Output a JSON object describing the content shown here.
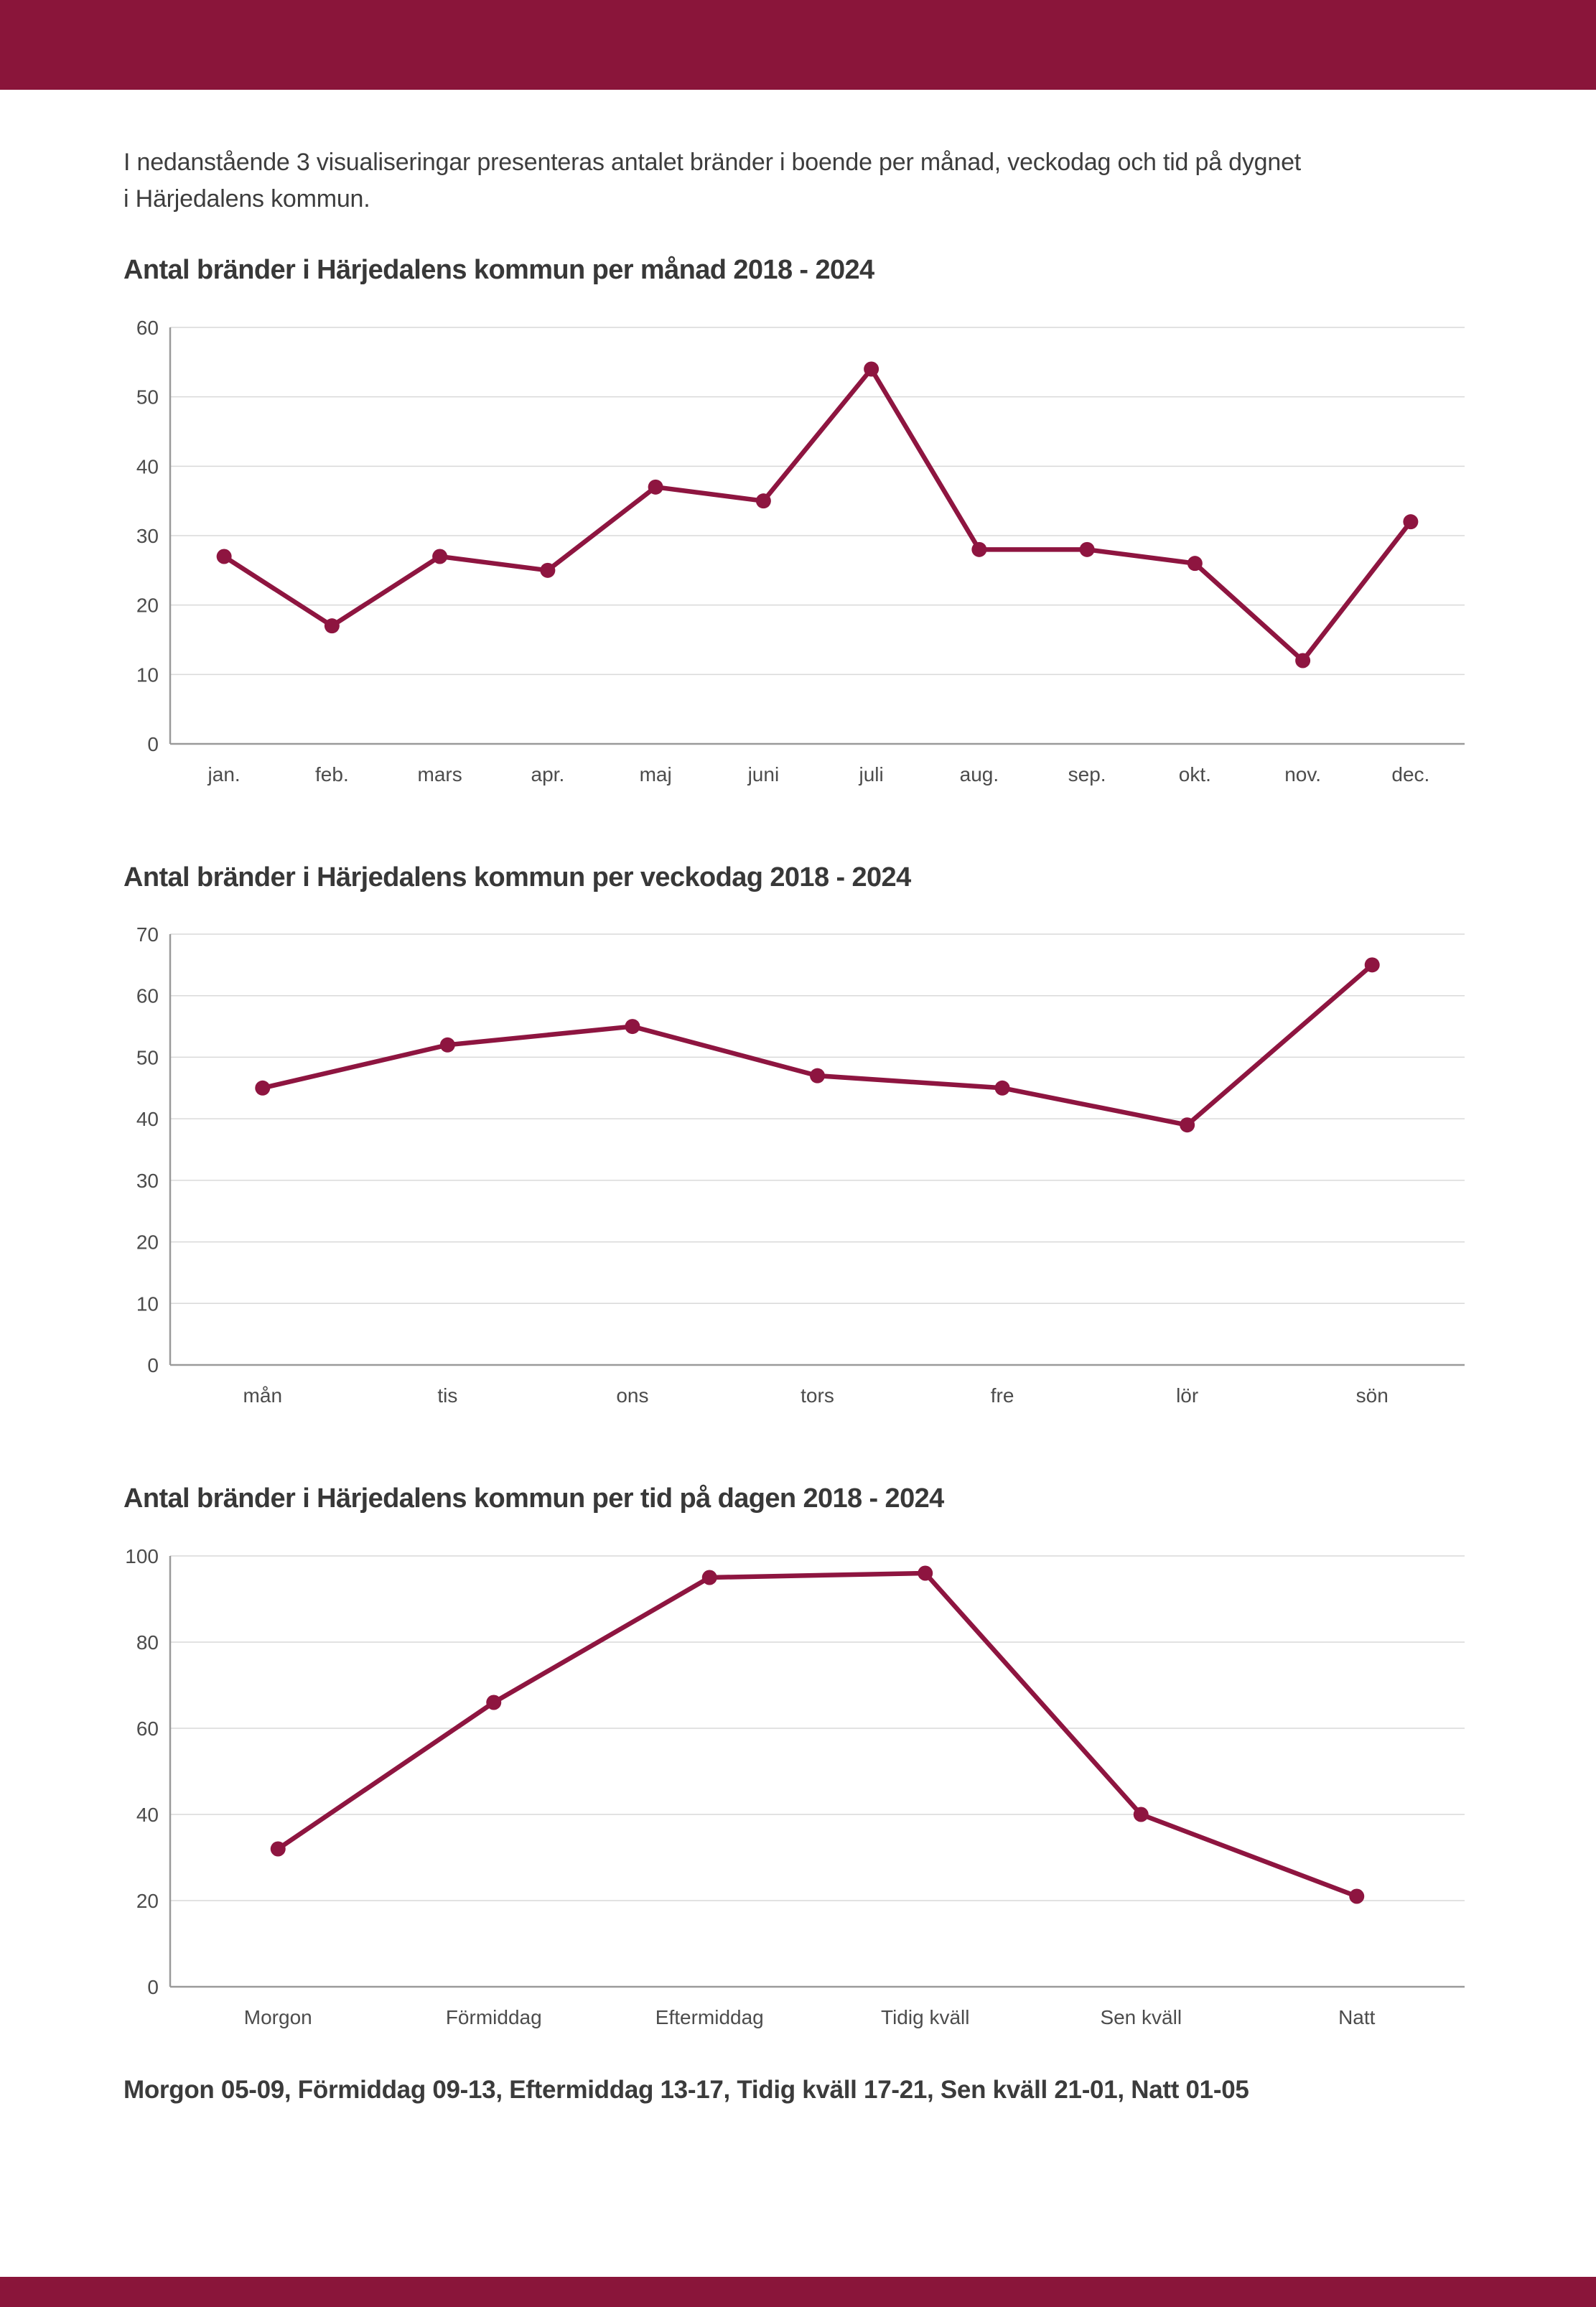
{
  "page": {
    "background": "#ffffff",
    "accent_bar_color": "#8a153a",
    "line_color": "#8e1540",
    "grid_color": "#d9d9d9",
    "axis_color": "#9a9a9a"
  },
  "intro": {
    "lines": [
      "I nedanstående 3 visualiseringar presenteras antalet bränder i boende per månad, veckodag och tid på dygnet",
      "i Härjedalens kommun."
    ]
  },
  "chart_data": [
    {
      "type": "line",
      "title": "Antal bränder i Härjedalens kommun per månad 2018 - 2024",
      "categories": [
        "jan.",
        "feb.",
        "mars",
        "apr.",
        "maj",
        "juni",
        "juli",
        "aug.",
        "sep.",
        "okt.",
        "nov.",
        "dec."
      ],
      "values": [
        27,
        17,
        27,
        25,
        37,
        35,
        54,
        28,
        28,
        26,
        12,
        32
      ],
      "xlabel": "",
      "ylabel": "",
      "ylim": [
        0,
        60
      ],
      "ytick_step": 10,
      "grid": "horizontal",
      "legend": "none",
      "line_color": "#8e1540"
    },
    {
      "type": "line",
      "title": "Antal bränder i Härjedalens kommun per veckodag 2018 - 2024",
      "categories": [
        "mån",
        "tis",
        "ons",
        "tors",
        "fre",
        "lör",
        "sön"
      ],
      "values": [
        45,
        52,
        55,
        47,
        45,
        39,
        65
      ],
      "xlabel": "",
      "ylabel": "",
      "ylim": [
        0,
        70
      ],
      "ytick_step": 10,
      "grid": "horizontal",
      "legend": "none",
      "line_color": "#8e1540"
    },
    {
      "type": "line",
      "title": "Antal bränder i Härjedalens kommun per tid på dagen 2018 - 2024",
      "categories": [
        "Morgon",
        "Förmiddag",
        "Eftermiddag",
        "Tidig kväll",
        "Sen kväll",
        "Natt"
      ],
      "values": [
        32,
        66,
        95,
        96,
        40,
        21
      ],
      "xlabel": "",
      "ylabel": "",
      "ylim": [
        0,
        100
      ],
      "ytick_step": 20,
      "grid": "horizontal",
      "legend": "none",
      "line_color": "#8e1540"
    }
  ],
  "footer": {
    "caption": "Morgon 05-09, Förmiddag 09-13, Eftermiddag 13-17, Tidig kväll 17-21, Sen kväll 21-01, Natt 01-05"
  }
}
